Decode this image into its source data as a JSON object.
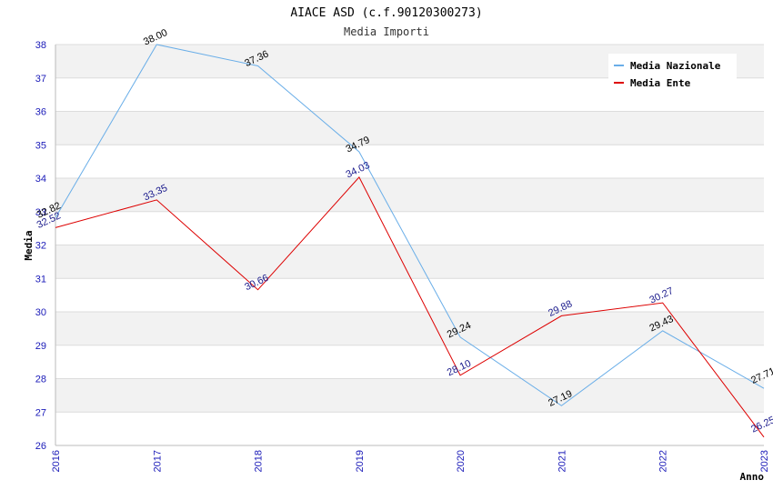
{
  "chart_data": {
    "type": "line",
    "title": "AIACE ASD (c.f.90120300273)",
    "subtitle": "Media Importi",
    "xlabel": "Anno",
    "ylabel": "Media",
    "categories": [
      "2016",
      "2017",
      "2018",
      "2019",
      "2020",
      "2021",
      "2022",
      "2023"
    ],
    "ylim": [
      26,
      38
    ],
    "yticks": [
      26,
      27,
      28,
      29,
      30,
      31,
      32,
      33,
      34,
      35,
      36,
      37,
      38
    ],
    "grid": true,
    "legend_position": "top-right",
    "series": [
      {
        "name": "Media Nazionale",
        "color": "#6aaee8",
        "label_color": "#000000",
        "values": [
          32.82,
          38.0,
          37.36,
          34.79,
          29.24,
          27.19,
          29.43,
          27.71
        ],
        "labels": [
          "32.82",
          "38.00",
          "37.36",
          "34.79",
          "29.24",
          "27.19",
          "29.43",
          "27.71"
        ]
      },
      {
        "name": "Media Ente",
        "color": "#dd0000",
        "label_color": "#1a1a8c",
        "values": [
          32.52,
          33.35,
          30.66,
          34.03,
          28.1,
          29.88,
          30.27,
          26.25
        ],
        "labels": [
          "32.52",
          "33.35",
          "30.66",
          "34.03",
          "28.10",
          "29.88",
          "30.27",
          "26.25"
        ]
      }
    ]
  }
}
